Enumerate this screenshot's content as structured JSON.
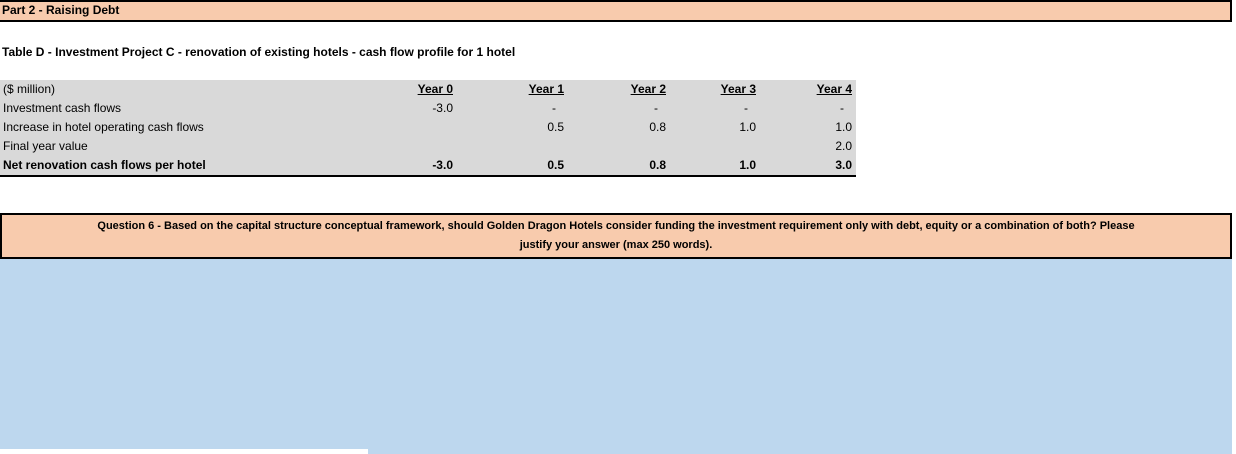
{
  "colors": {
    "section_fill": "#F8CBAD",
    "table_fill": "#D9D9D9",
    "answer_fill": "#BDD7EE",
    "border": "#000000"
  },
  "section": {
    "title": "Part 2 - Raising Debt"
  },
  "table": {
    "title": "Table D - Investment Project C - renovation of existing hotels - cash flow profile for 1 hotel",
    "unit_label": "($ million)",
    "columns": [
      "Year 0",
      "Year 1",
      "Year 2",
      "Year 3",
      "Year 4"
    ],
    "rows": [
      {
        "label": "Investment cash flows",
        "values": [
          "-3.0",
          "-",
          "-",
          "-",
          "-"
        ]
      },
      {
        "label": "Increase in hotel operating cash flows",
        "values": [
          "",
          "0.5",
          "0.8",
          "1.0",
          "1.0"
        ]
      },
      {
        "label": "Final year value",
        "values": [
          "",
          "",
          "",
          "",
          "2.0"
        ]
      },
      {
        "label": "Net renovation cash flows per hotel",
        "values": [
          "-3.0",
          "0.5",
          "0.8",
          "1.0",
          "3.0"
        ]
      }
    ]
  },
  "question": {
    "line1": "Question 6 - Based on the capital structure conceptual framework, should Golden Dragon Hotels consider funding the investment requirement only with debt, equity or a combination of both?  Please",
    "line2": "justify your answer (max 250 words)."
  },
  "answer": {
    "value": ""
  }
}
